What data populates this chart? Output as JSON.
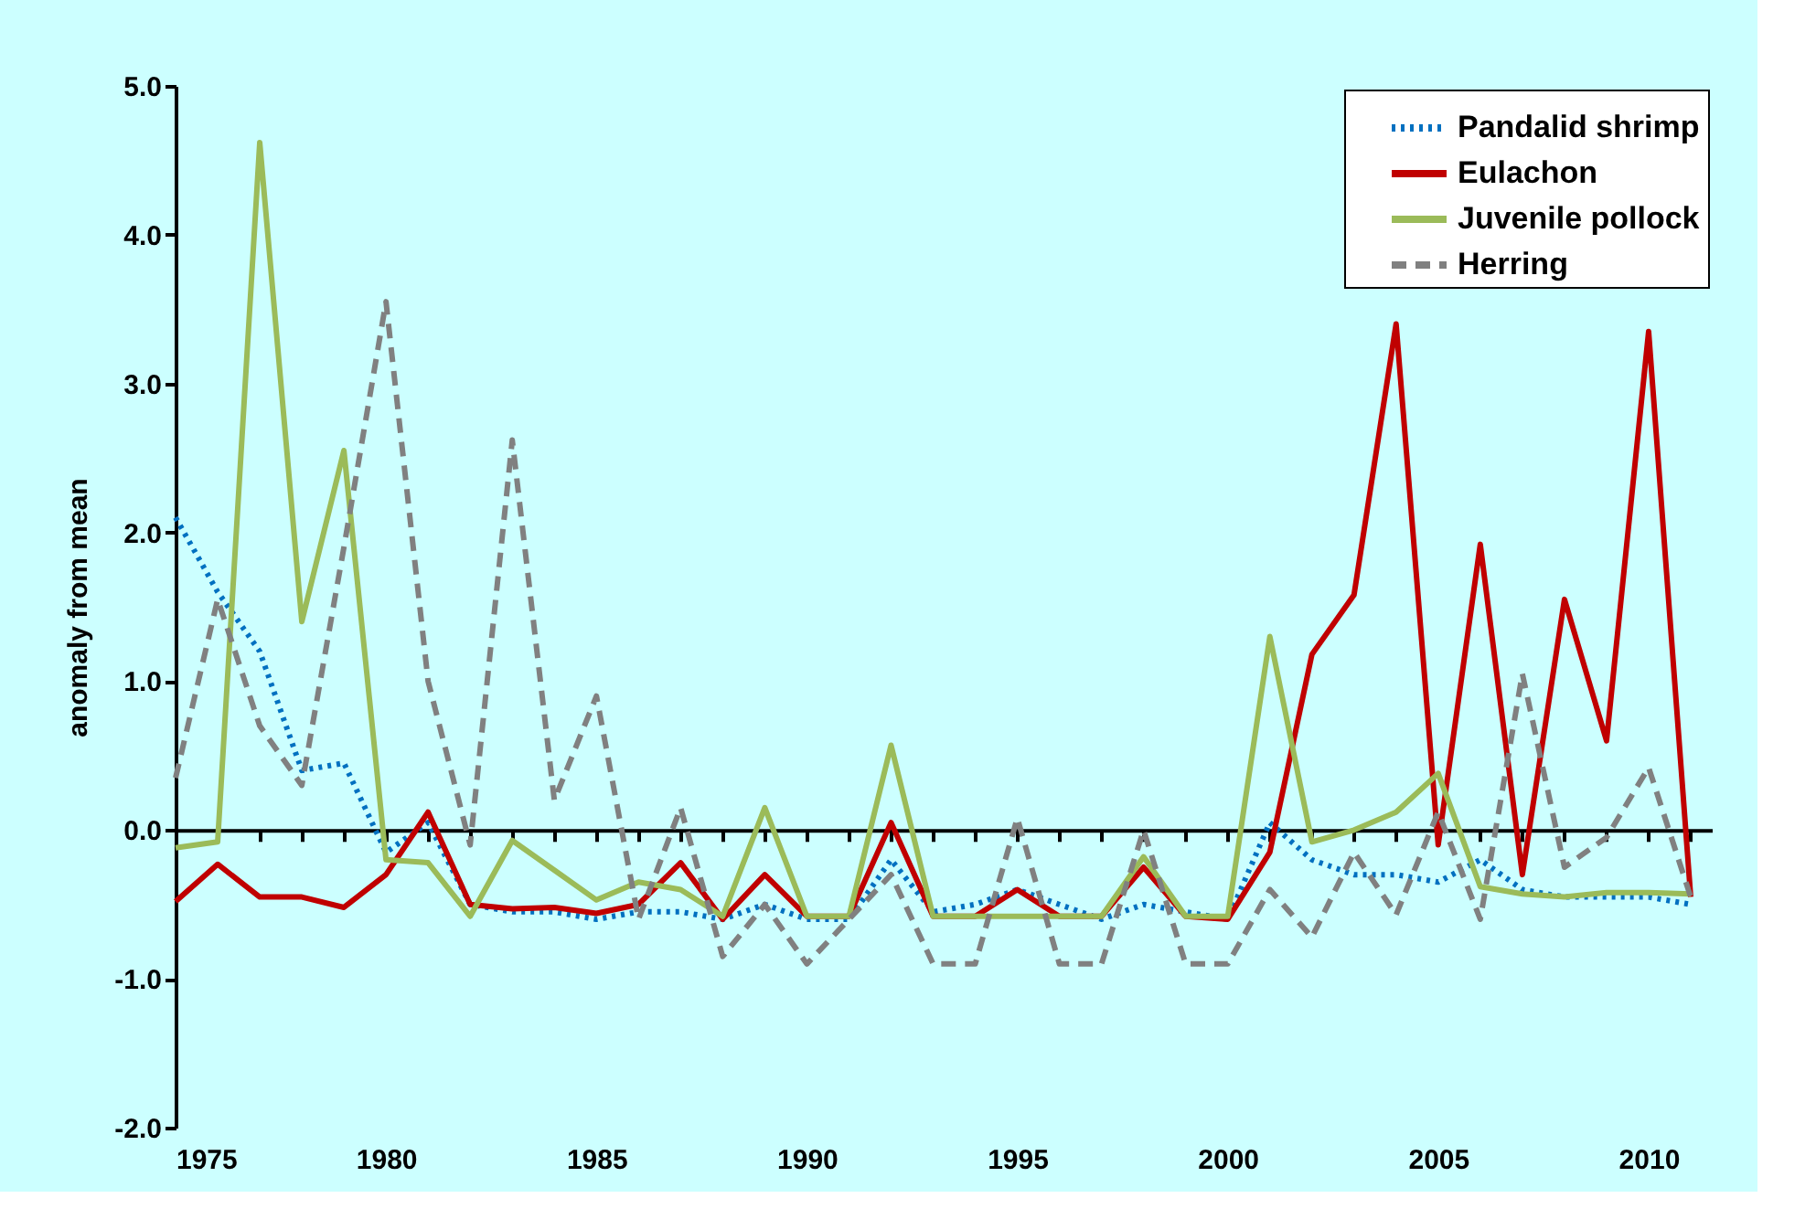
{
  "chart_data": {
    "type": "line",
    "ylabel": "anomaly from mean",
    "x": [
      1975,
      1976,
      1977,
      1978,
      1979,
      1980,
      1981,
      1982,
      1983,
      1984,
      1985,
      1986,
      1987,
      1988,
      1989,
      1990,
      1991,
      1992,
      1993,
      1994,
      1995,
      1996,
      1997,
      1998,
      1999,
      2000,
      2001,
      2002,
      2003,
      2004,
      2005,
      2006,
      2007,
      2008,
      2009,
      2010,
      2011
    ],
    "series": [
      {
        "name": "Pandalid shrimp",
        "color": "#0070c0",
        "line_style": "dotted",
        "values": [
          2.1,
          1.6,
          1.2,
          0.4,
          0.45,
          -0.15,
          0.05,
          -0.5,
          -0.55,
          -0.55,
          -0.6,
          -0.55,
          -0.55,
          -0.6,
          -0.5,
          -0.6,
          -0.6,
          -0.2,
          -0.55,
          -0.5,
          -0.4,
          -0.5,
          -0.6,
          -0.5,
          -0.55,
          -0.6,
          0.05,
          -0.2,
          -0.3,
          -0.3,
          -0.35,
          -0.2,
          -0.4,
          -0.45,
          -0.45,
          -0.45,
          -0.5
        ]
      },
      {
        "name": "Eulachon",
        "color": "#c00000",
        "line_style": "solid",
        "values": [
          -0.48,
          -0.23,
          -0.45,
          -0.45,
          -0.52,
          -0.3,
          0.12,
          -0.5,
          -0.53,
          -0.52,
          -0.56,
          -0.5,
          -0.22,
          -0.6,
          -0.3,
          -0.58,
          -0.58,
          0.05,
          -0.58,
          -0.58,
          -0.4,
          -0.58,
          -0.58,
          -0.25,
          -0.58,
          -0.6,
          -0.15,
          1.18,
          1.58,
          3.4,
          -0.1,
          1.92,
          -0.3,
          1.55,
          0.6,
          3.35,
          -0.45
        ]
      },
      {
        "name": "Juvenile pollock",
        "color": "#9bbb59",
        "line_style": "solid",
        "values": [
          -0.12,
          -0.08,
          4.62,
          1.4,
          2.55,
          -0.2,
          -0.22,
          -0.58,
          -0.07,
          -0.27,
          -0.47,
          -0.35,
          -0.4,
          -0.58,
          0.15,
          -0.58,
          -0.58,
          0.57,
          -0.58,
          -0.58,
          -0.58,
          -0.58,
          -0.58,
          -0.18,
          -0.58,
          -0.58,
          1.3,
          -0.08,
          0.0,
          0.12,
          0.38,
          -0.38,
          -0.43,
          -0.45,
          -0.42,
          -0.42,
          -0.43
        ]
      },
      {
        "name": "Herring",
        "color": "#808080",
        "line_style": "dashed",
        "values": [
          0.35,
          1.55,
          0.7,
          0.3,
          1.9,
          3.55,
          1.0,
          -0.1,
          2.62,
          0.2,
          0.9,
          -0.6,
          0.15,
          -0.85,
          -0.5,
          -0.9,
          -0.6,
          -0.3,
          -0.9,
          -0.9,
          0.08,
          -0.9,
          -0.9,
          0.0,
          -0.9,
          -0.9,
          -0.4,
          -0.72,
          -0.15,
          -0.57,
          0.12,
          -0.6,
          1.05,
          -0.25,
          -0.05,
          0.42,
          -0.45
        ]
      }
    ],
    "xlim": [
      1975,
      2011.5
    ],
    "xticks": [
      1975,
      {
        "value": 1976,
        "label": null
      },
      {
        "value": 1977,
        "label": null
      },
      {
        "value": 1978,
        "label": null
      },
      {
        "value": 1979,
        "label": null
      },
      1980,
      {
        "value": 1981,
        "label": null
      },
      {
        "value": 1982,
        "label": null
      },
      {
        "value": 1983,
        "label": null
      },
      {
        "value": 1984,
        "label": null
      },
      1985,
      {
        "value": 1986,
        "label": null
      },
      {
        "value": 1987,
        "label": null
      },
      {
        "value": 1988,
        "label": null
      },
      {
        "value": 1989,
        "label": null
      },
      1990,
      {
        "value": 1991,
        "label": null
      },
      {
        "value": 1992,
        "label": null
      },
      {
        "value": 1993,
        "label": null
      },
      {
        "value": 1994,
        "label": null
      },
      1995,
      {
        "value": 1996,
        "label": null
      },
      {
        "value": 1997,
        "label": null
      },
      {
        "value": 1998,
        "label": null
      },
      {
        "value": 1999,
        "label": null
      },
      2000,
      {
        "value": 2001,
        "label": null
      },
      {
        "value": 2002,
        "label": null
      },
      {
        "value": 2003,
        "label": null
      },
      {
        "value": 2004,
        "label": null
      },
      2005,
      {
        "value": 2006,
        "label": null
      },
      {
        "value": 2007,
        "label": null
      },
      {
        "value": 2008,
        "label": null
      },
      {
        "value": 2009,
        "label": null
      },
      2010,
      {
        "value": 2011,
        "label": null
      }
    ],
    "ylim": [
      -2.0,
      5.0
    ],
    "yticks": [
      {
        "value": -2,
        "label": "-2.0"
      },
      {
        "value": -1,
        "label": "-1.0"
      },
      {
        "value": 0,
        "label": "0.0"
      },
      {
        "value": 1,
        "label": "1.0"
      },
      {
        "value": 2,
        "label": "2.0"
      },
      {
        "value": 3,
        "label": "3.0"
      },
      {
        "value": 4,
        "label": "4.0"
      },
      {
        "value": 5,
        "label": "5.0"
      }
    ],
    "legend": "top right",
    "marker": "none"
  }
}
